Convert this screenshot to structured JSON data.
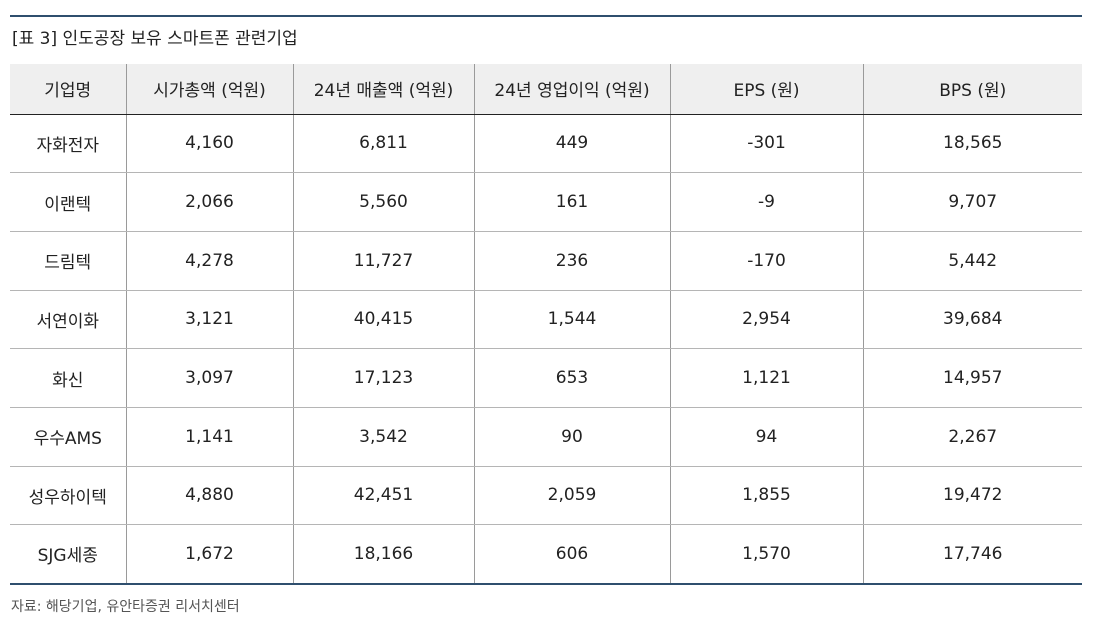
{
  "table_title": "[표 3] 인도공장 보유 스마트폰 관련기업",
  "columns": [
    "기업명",
    "시가총액 (억원)",
    "24년 매출액 (억원)",
    "24년 영업이익 (억원)",
    "EPS (원)",
    "BPS (원)"
  ],
  "rows": [
    [
      "자화전자",
      "4,160",
      "6,811",
      "449",
      "-301",
      "18,565"
    ],
    [
      "이랜텍",
      "2,066",
      "5,560",
      "161",
      "-9",
      "9,707"
    ],
    [
      "드림텍",
      "4,278",
      "11,727",
      "236",
      "-170",
      "5,442"
    ],
    [
      "서연이화",
      "3,121",
      "40,415",
      "1,544",
      "2,954",
      "39,684"
    ],
    [
      "화신",
      "3,097",
      "17,123",
      "653",
      "1,121",
      "14,957"
    ],
    [
      "우수AMS",
      "1,141",
      "3,542",
      "90",
      "94",
      "2,267"
    ],
    [
      "성우하이텍",
      "4,880",
      "42,451",
      "2,059",
      "1,855",
      "19,472"
    ],
    [
      "SJG세종",
      "1,672",
      "18,166",
      "606",
      "1,570",
      "17,746"
    ]
  ],
  "source": "자료: 해당기업, 유안타증권 리서치센터",
  "colors": {
    "accent_rule": "#2f4f6e",
    "header_bg": "#efefef"
  }
}
